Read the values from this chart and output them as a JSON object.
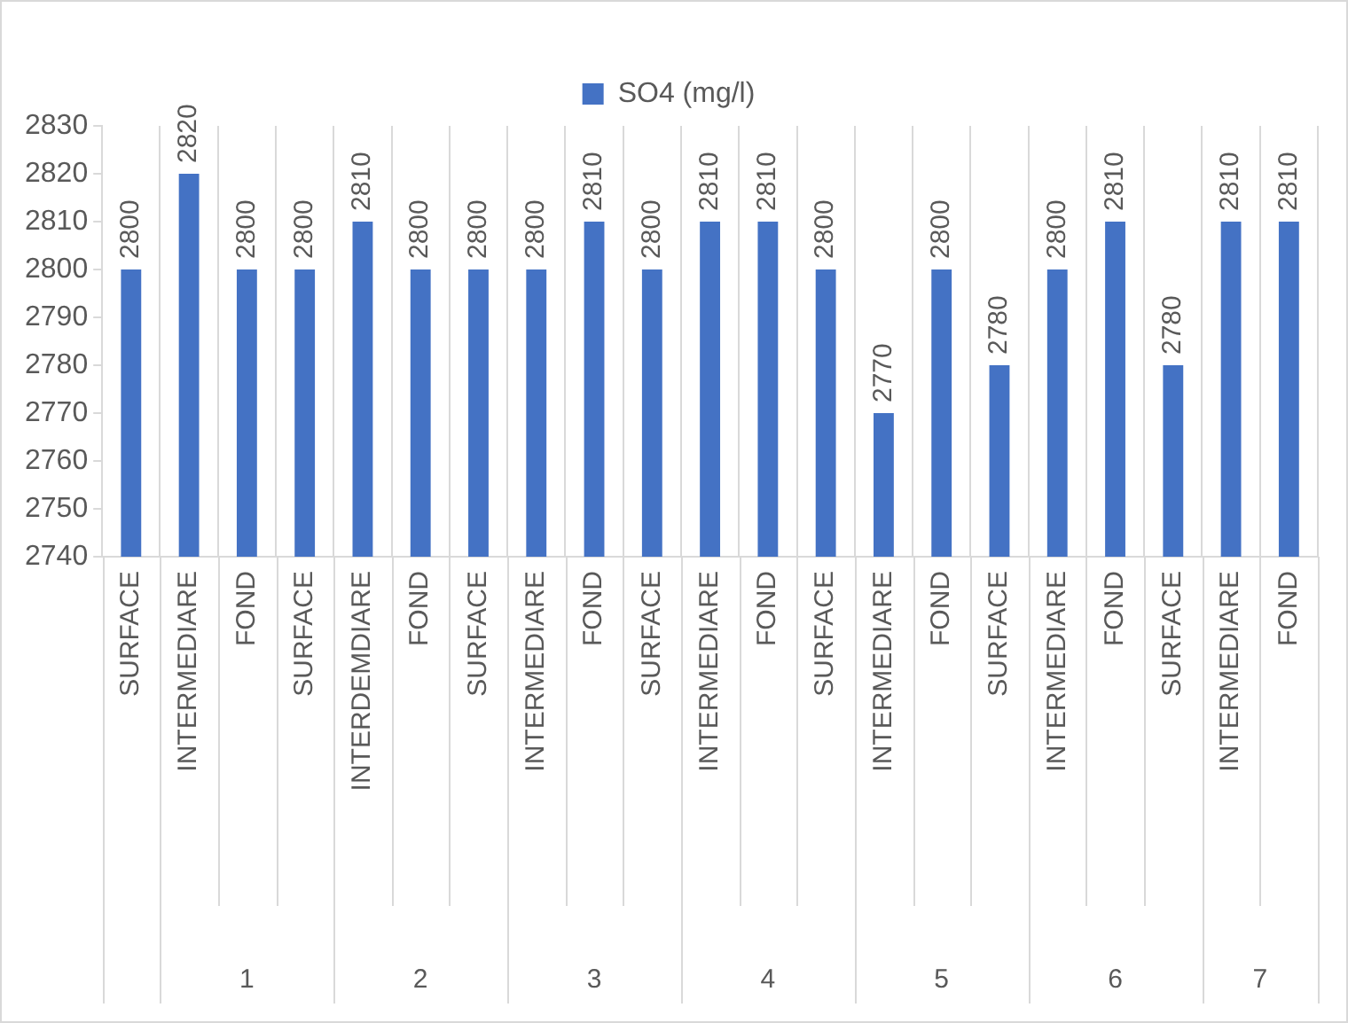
{
  "chart_data": {
    "type": "bar",
    "categories": [
      "SURFACE",
      "INTERMEDIARE",
      "FOND",
      "SURFACE",
      "INTERDEMDIARE",
      "FOND",
      "SURFACE",
      "INTERMEDIARE",
      "FOND",
      "SURFACE",
      "INTERMEDIARE",
      "FOND",
      "SURFACE",
      "INTERMEDIARE",
      "FOND",
      "SURFACE",
      "INTERMEDIARE",
      "FOND",
      "SURFACE",
      "INTERMEDIARE",
      "FOND"
    ],
    "series": [
      {
        "name": "SO4 (mg/l)",
        "color": "#4472c4",
        "values": [
          2800,
          2820,
          2800,
          2800,
          2810,
          2800,
          2800,
          2800,
          2810,
          2800,
          2810,
          2810,
          2800,
          2770,
          2800,
          2780,
          2800,
          2810,
          2780,
          2810,
          2810
        ]
      }
    ],
    "annotations": [
      "1",
      "2",
      "3",
      "4",
      "5",
      "6",
      "7"
    ],
    "ylim": [
      2740,
      2830
    ],
    "yticks": [
      2740,
      2750,
      2760,
      2770,
      2780,
      2790,
      2800,
      2810,
      2820,
      2830
    ],
    "grid": "x",
    "legend": "top",
    "data_labels": true
  }
}
